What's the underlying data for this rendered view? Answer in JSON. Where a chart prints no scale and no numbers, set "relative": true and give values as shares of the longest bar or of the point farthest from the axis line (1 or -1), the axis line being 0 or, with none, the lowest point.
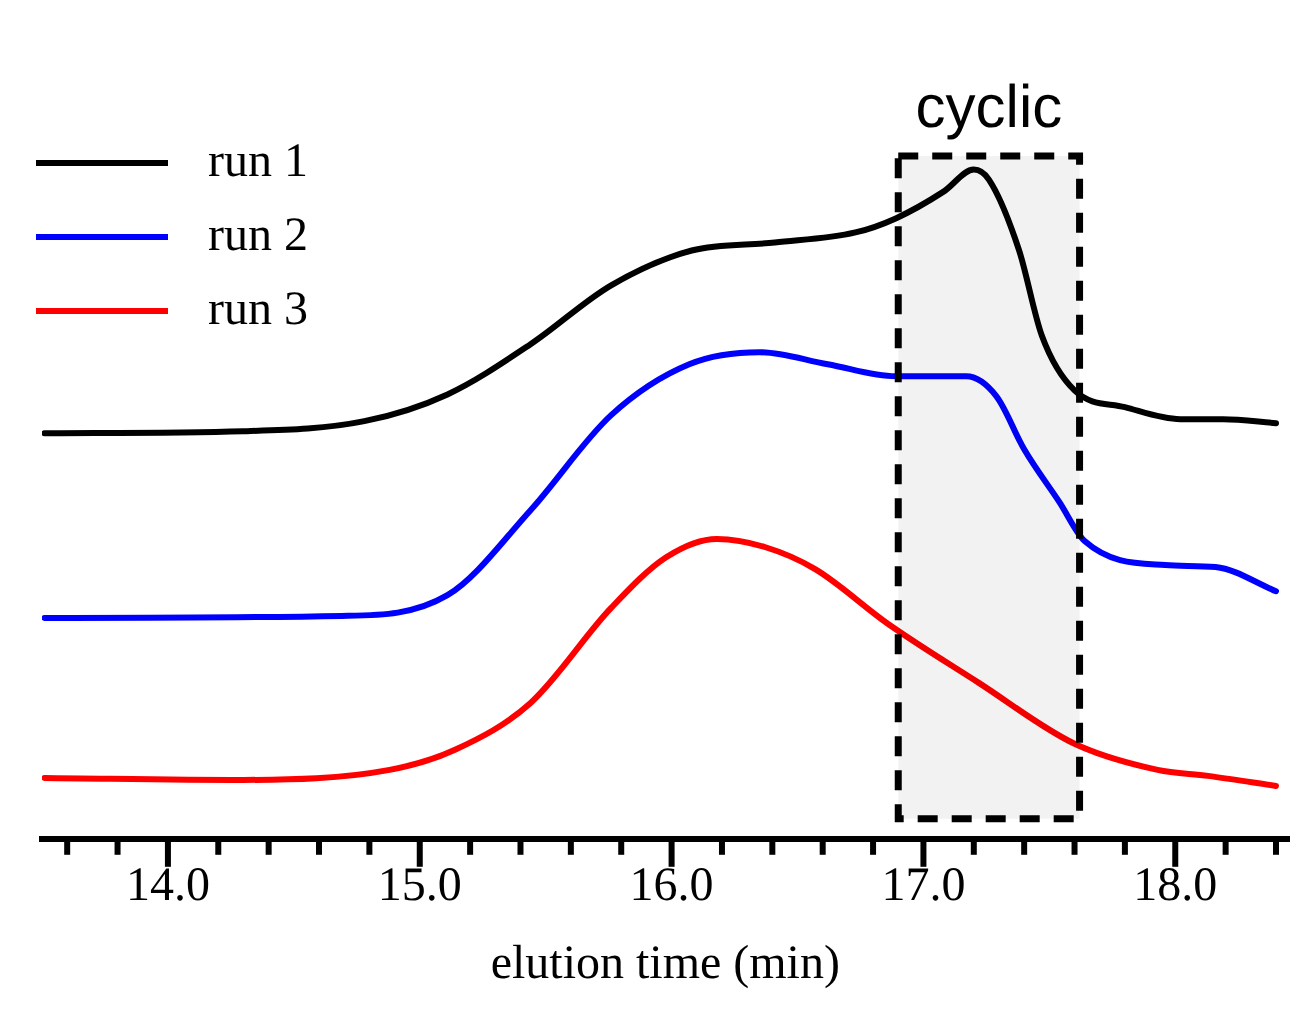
{
  "chart_data": {
    "type": "line",
    "xlabel": "elution time (min)",
    "relative": true,
    "xlim": [
      13.5,
      18.45
    ],
    "xticks": [
      {
        "value": 13.6,
        "label": null
      },
      {
        "value": 13.8,
        "label": null
      },
      {
        "value": 14,
        "label": "14.0"
      },
      {
        "value": 14.2,
        "label": null
      },
      {
        "value": 14.4,
        "label": null
      },
      {
        "value": 14.6,
        "label": null
      },
      {
        "value": 14.8,
        "label": null
      },
      {
        "value": 15,
        "label": "15.0"
      },
      {
        "value": 15.2,
        "label": null
      },
      {
        "value": 15.4,
        "label": null
      },
      {
        "value": 15.6,
        "label": null
      },
      {
        "value": 15.8,
        "label": null
      },
      {
        "value": 16,
        "label": "16.0"
      },
      {
        "value": 16.2,
        "label": null
      },
      {
        "value": 16.4,
        "label": null
      },
      {
        "value": 16.6,
        "label": null
      },
      {
        "value": 16.8,
        "label": null
      },
      {
        "value": 17,
        "label": "17.0"
      },
      {
        "value": 17.2,
        "label": null
      },
      {
        "value": 17.4,
        "label": null
      },
      {
        "value": 17.6,
        "label": null
      },
      {
        "value": 17.8,
        "label": null
      },
      {
        "value": 18,
        "label": "18.0"
      },
      {
        "value": 18.2,
        "label": null
      },
      {
        "value": 18.4,
        "label": null
      }
    ],
    "series": [
      {
        "name": "run 1",
        "color": "#000000",
        "x": [
          13.51,
          14.3,
          14.78,
          15.11,
          15.44,
          15.76,
          16.08,
          16.41,
          16.73,
          16.89,
          17.08,
          17.2,
          17.26,
          17.38,
          17.47,
          17.6,
          17.8,
          18.02,
          18.19,
          18.4
        ],
        "values": [
          0.606,
          0.609,
          0.624,
          0.664,
          0.739,
          0.827,
          0.879,
          0.891,
          0.906,
          0.927,
          0.967,
          1,
          0.985,
          0.879,
          0.752,
          0.67,
          0.645,
          0.627,
          0.627,
          0.621
        ]
      },
      {
        "name": "run 2",
        "color": "#0000ff",
        "x": [
          13.51,
          14.69,
          15.11,
          15.44,
          15.76,
          16.07,
          16.35,
          16.62,
          16.89,
          17.17,
          17.29,
          17.4,
          17.54,
          17.64,
          17.96,
          18.16,
          18.4
        ],
        "values": [
          0.33,
          0.333,
          0.364,
          0.491,
          0.633,
          0.709,
          0.727,
          0.709,
          0.691,
          0.691,
          0.661,
          0.582,
          0.503,
          0.445,
          0.409,
          0.406,
          0.37
        ]
      },
      {
        "name": "run 3",
        "color": "#ff0000",
        "x": [
          13.51,
          14.3,
          14.88,
          15.14,
          15.44,
          15.76,
          15.98,
          16.18,
          16.37,
          16.57,
          16.86,
          17.22,
          17.6,
          17.93,
          18.13,
          18.4
        ],
        "values": [
          0.091,
          0.088,
          0.103,
          0.133,
          0.203,
          0.345,
          0.421,
          0.448,
          0.436,
          0.403,
          0.321,
          0.233,
          0.142,
          0.103,
          0.094,
          0.079
        ]
      }
    ],
    "bands": [
      {
        "axis": "x",
        "from": 16.9,
        "to": 17.62,
        "label": "cyclic",
        "color": "#000000"
      }
    ],
    "legend": "top left",
    "grid": false,
    "marker": "none",
    "line_style": "solid"
  }
}
